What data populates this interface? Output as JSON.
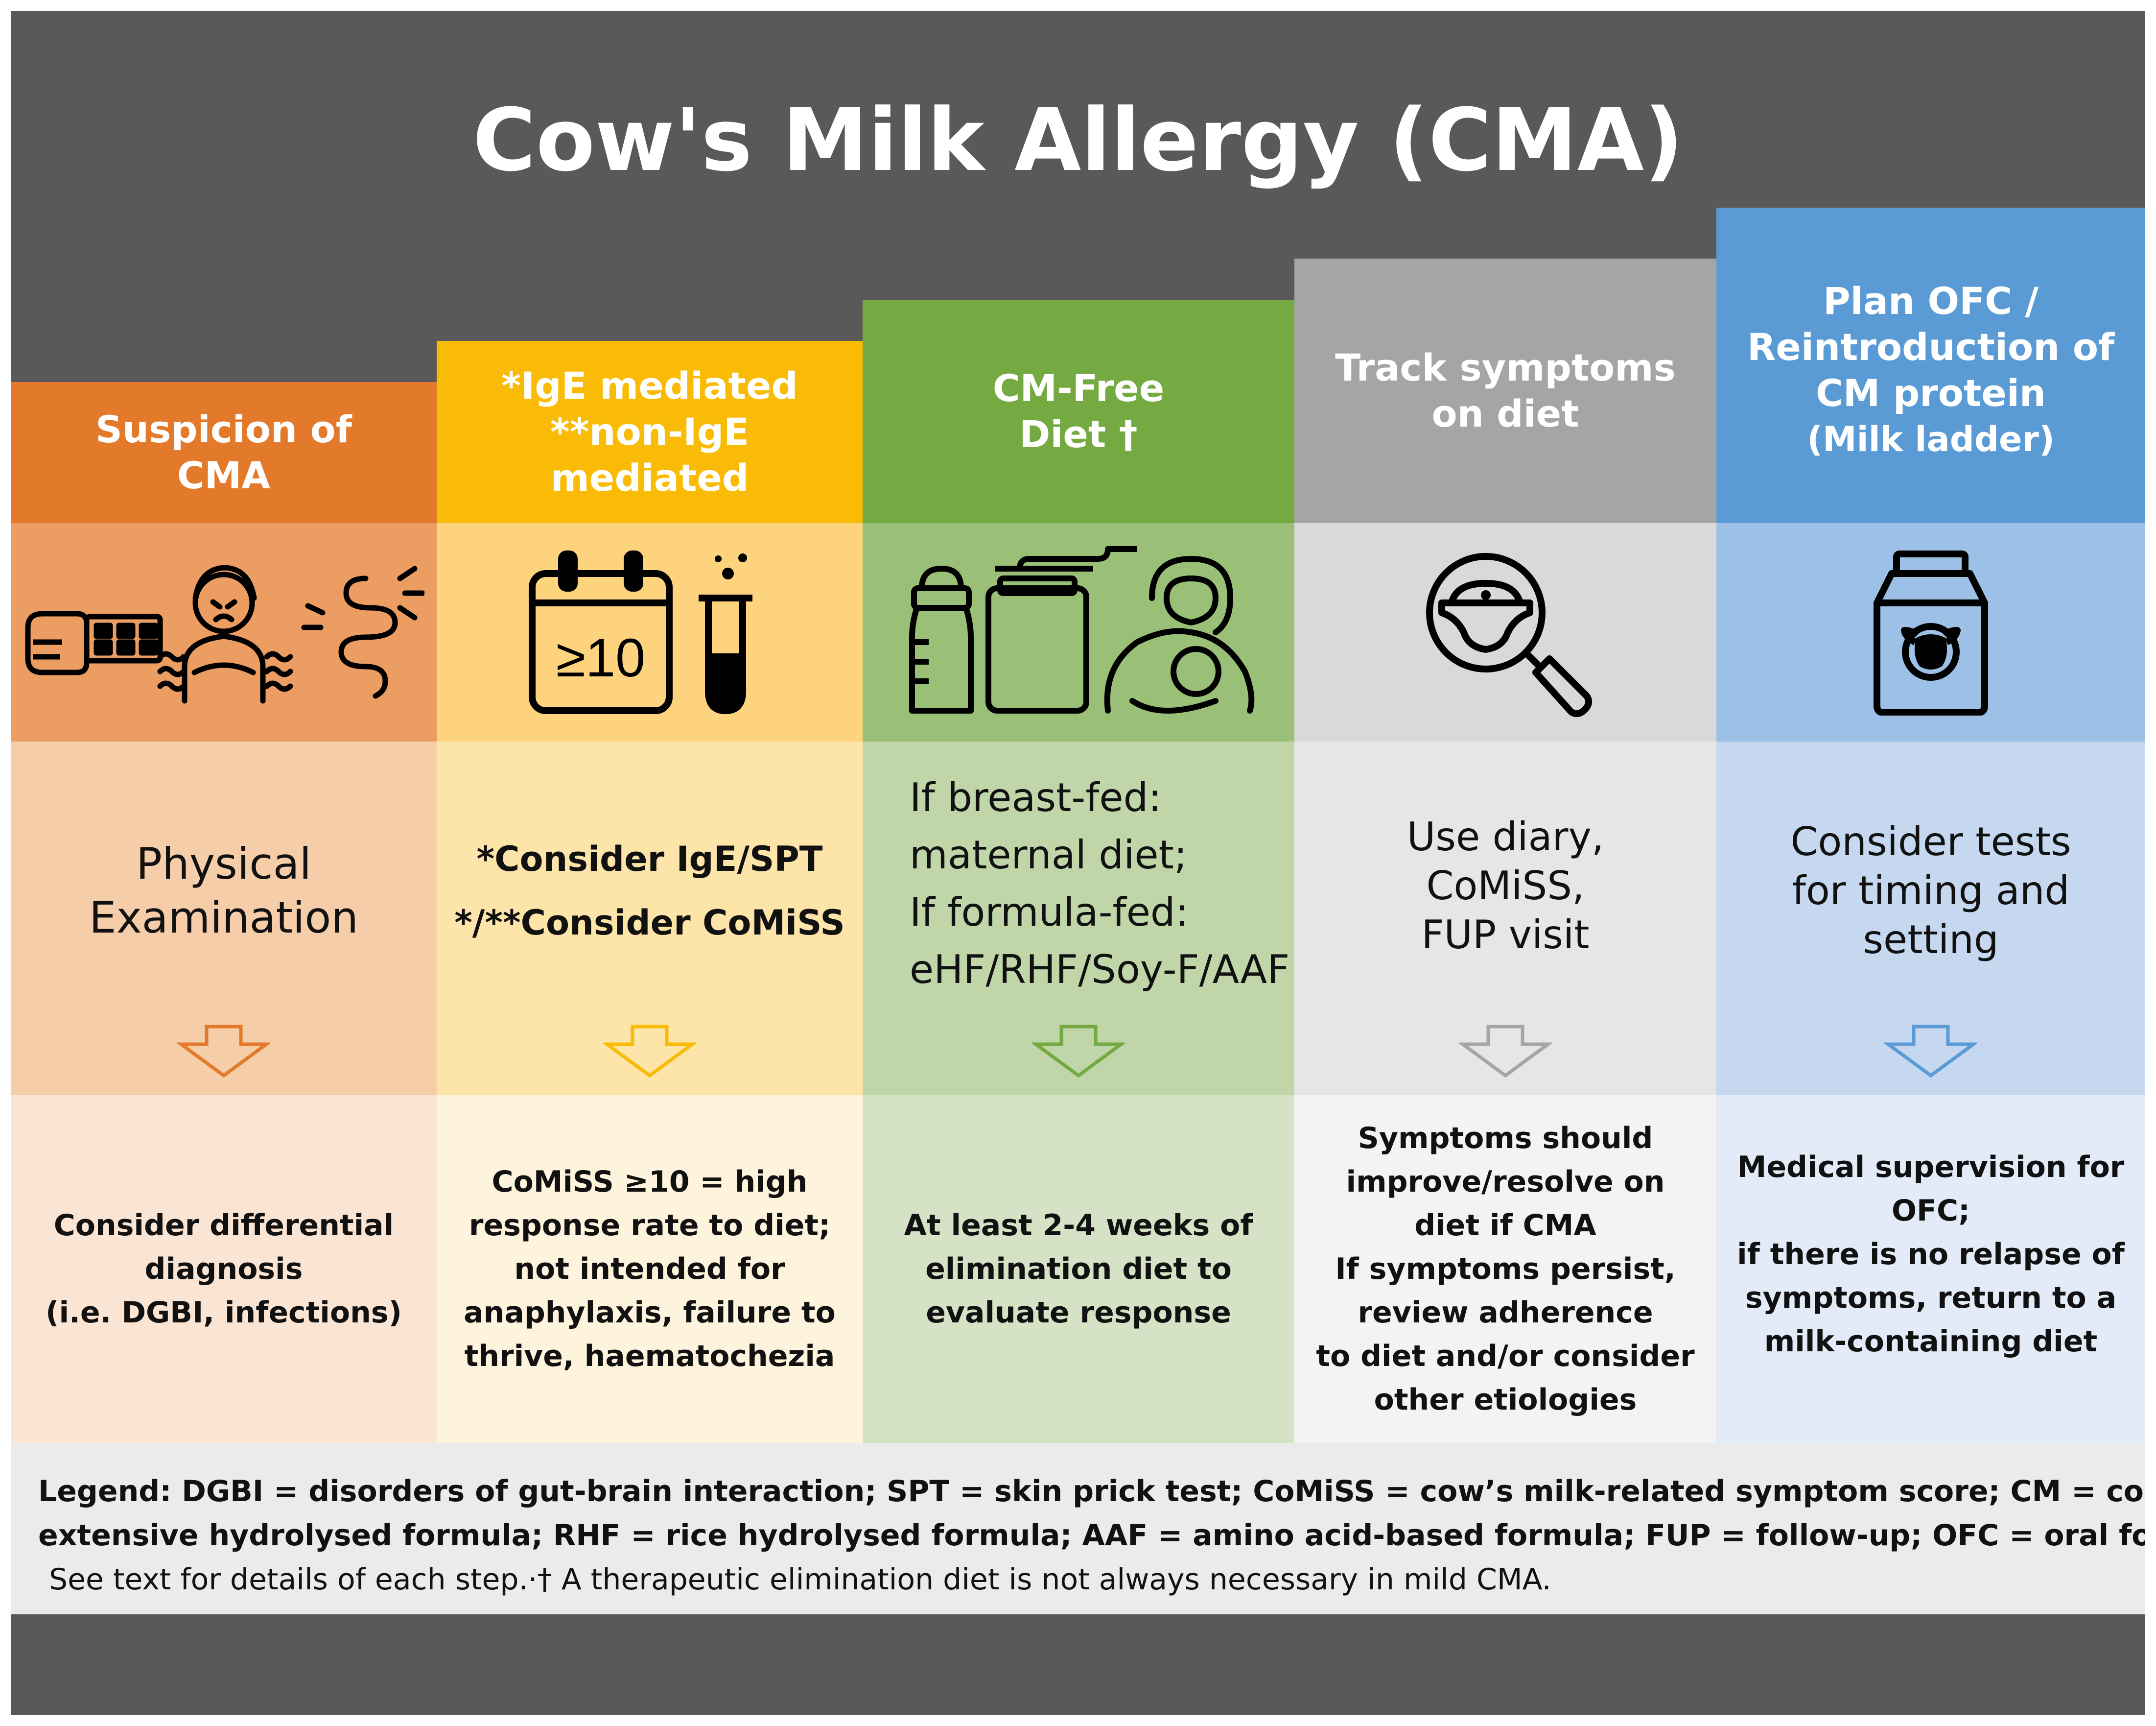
{
  "title": "Cow's Milk Allergy (CMA)",
  "columns": [
    {
      "header": [
        "Suspicion of",
        "CMA"
      ],
      "icons": [
        "skin-rash-arm-icon",
        "distressed-infant-icon",
        "gut-pain-icon"
      ],
      "middle": [
        "Physical",
        "Examination"
      ],
      "bottom": [
        "Consider differential",
        "diagnosis",
        "(i.e. DGBI, infections)"
      ],
      "colors": {
        "header": "#e3792a",
        "icon_band": "#eb9d62",
        "middle": "#f5cda9",
        "bottom": "#fae4d3",
        "arrow": "#e3792a"
      }
    },
    {
      "header": [
        "*IgE mediated",
        "**non-IgE mediated"
      ],
      "icons": [
        "calendar-score-icon",
        "test-tube-icon"
      ],
      "calendar_text": "≥10",
      "middle": [
        "*Consider IgE/SPT",
        "*/**Consider CoMiSS"
      ],
      "bottom": [
        "CoMiSS ≥10 = high",
        "response rate to diet;",
        "not intended for",
        "anaphylaxis, failure to",
        "thrive, haematochezia"
      ],
      "colors": {
        "header": "#f9bb05",
        "icon_band": "#fdd47d",
        "middle": "#fde4a9",
        "bottom": "#fef3dc",
        "arrow": "#f9bb05"
      }
    },
    {
      "header": [
        "CM-Free",
        "Diet †"
      ],
      "icons": [
        "baby-bottle-icon",
        "formula-tin-icon",
        "breastfeeding-icon"
      ],
      "middle": [
        "If breast-fed:",
        "maternal diet;",
        "If formula-fed:",
        "eHF/RHF/Soy-F/AAF"
      ],
      "bottom": [
        "At least 2-4 weeks of",
        "elimination diet to",
        "evaluate response"
      ],
      "colors": {
        "header": "#75aa42",
        "icon_band": "#9abf76",
        "middle": "#c0d5a8",
        "bottom": "#d5e2c6",
        "arrow": "#75aa42"
      }
    },
    {
      "header": [
        "Track symptoms",
        "on diet"
      ],
      "icons": [
        "magnifier-diaper-icon"
      ],
      "middle": [
        "Use diary,",
        "CoMiSS,",
        "FUP visit"
      ],
      "bottom": [
        "Symptoms should",
        "improve/resolve on",
        "diet if CMA",
        "If symptoms persist,",
        "review adherence",
        "to diet and/or consider",
        "other etiologies"
      ],
      "colors": {
        "header": "#a5a5a5",
        "icon_band": "#d9d9d9",
        "middle": "#e6e6e6",
        "bottom": "#f3f3f3",
        "arrow": "#a5a5a5"
      }
    },
    {
      "header": [
        "Plan OFC /",
        "Reintroduction of",
        "CM protein",
        "(Milk ladder)"
      ],
      "icons": [
        "milk-carton-icon"
      ],
      "middle": [
        "Consider tests",
        "for timing and",
        "setting"
      ],
      "bottom": [
        "Medical supervision for",
        "OFC;",
        "if there is no relapse of",
        "symptoms, return to a",
        "milk-containing diet"
      ],
      "colors": {
        "header": "#5b9bd5",
        "icon_band": "#9dc0e6",
        "middle": "#c5d8ef",
        "bottom": "#e2ebf7",
        "arrow": "#5b9bd5"
      }
    }
  ],
  "legend": {
    "line1": "Legend: DGBI = disorders of gut-brain interaction; SPT = skin prick test; CoMiSS = cow’s milk-related symptom score; CM = cow’s milk; eHF =",
    "line2": "extensive hydrolysed formula; RHF = rice hydrolysed formula; AAF = amino acid-based formula; FUP = follow-up; OFC = oral food challenge",
    "line3": "See text for details of each step.·† A therapeutic elimination diet is not always necessary in mild CMA."
  }
}
